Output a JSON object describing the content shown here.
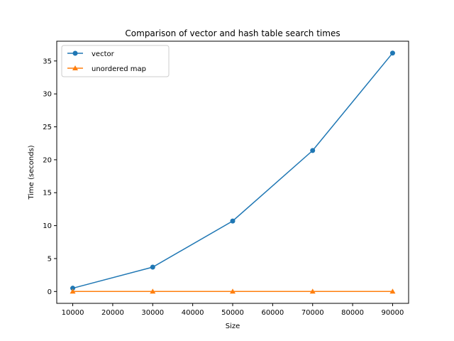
{
  "chart_data": {
    "type": "line",
    "title": "Comparison of vector and hash table search times",
    "xlabel": "Size",
    "ylabel": "Time (seconds)",
    "x": [
      10000,
      30000,
      50000,
      70000,
      90000
    ],
    "xlim": [
      6000,
      94000
    ],
    "ylim": [
      -1.8,
      38.0
    ],
    "xticks": [
      10000,
      20000,
      30000,
      40000,
      50000,
      60000,
      70000,
      80000,
      90000
    ],
    "yticks": [
      0,
      5,
      10,
      15,
      20,
      25,
      30,
      35
    ],
    "grid": false,
    "legend_position": "top-left",
    "series": [
      {
        "name": "vector",
        "marker": "circle",
        "color": "#1f77b4",
        "values": [
          0.5,
          3.7,
          10.7,
          21.4,
          36.2
        ]
      },
      {
        "name": "unordered map",
        "marker": "triangle",
        "color": "#ff7f0e",
        "values": [
          0.0,
          0.0,
          0.0,
          0.0,
          0.0
        ]
      }
    ]
  }
}
